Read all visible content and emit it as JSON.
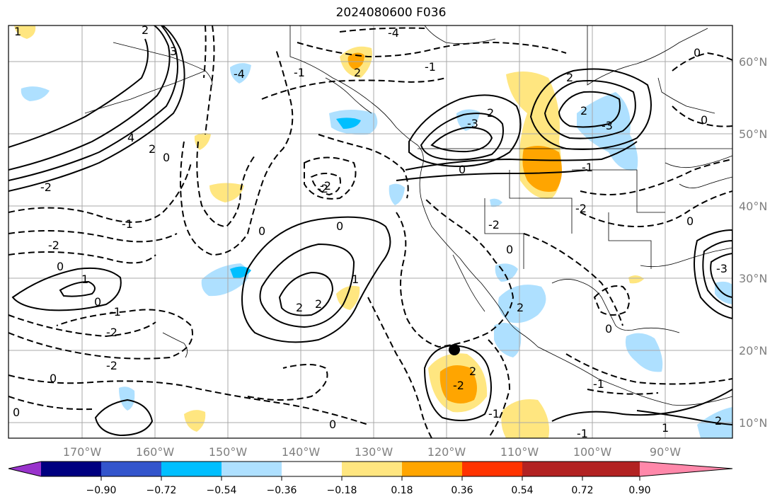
{
  "title": "2024080600 F036",
  "map": {
    "lon_ticks": [
      "170°W",
      "160°W",
      "150°W",
      "140°W",
      "130°W",
      "120°W",
      "110°W",
      "100°W",
      "90°W"
    ],
    "lat_ticks": [
      "60°N",
      "50°N",
      "40°N",
      "30°N",
      "20°N",
      "10°N"
    ],
    "contour_labels": [
      "-4",
      "-2",
      "-2",
      "-2",
      "-2",
      "-2",
      "-2",
      "-2",
      "-1",
      "-1",
      "-1",
      "0",
      "0",
      "0",
      "0",
      "0",
      "0",
      "0",
      "0",
      "0",
      "0",
      "0",
      "1",
      "1",
      "1",
      "2",
      "2",
      "2",
      "2",
      "2",
      "2",
      "2",
      "2",
      "-2",
      "4",
      "-4",
      "-3",
      "-3",
      "3",
      "-2",
      "-1",
      "-1",
      "-3",
      "2",
      "-1",
      "0",
      "0",
      "0",
      "-1",
      "2",
      "-1",
      "1",
      "2"
    ],
    "grid": true
  },
  "colorbar": {
    "labels": [
      "−0.90",
      "−0.72",
      "−0.54",
      "−0.36",
      "−0.18",
      "0.18",
      "0.36",
      "0.54",
      "0.72",
      "0.90"
    ],
    "colors": [
      "#9933cc",
      "#000080",
      "#3355cc",
      "#00bfff",
      "#aee0ff",
      "#ffffff",
      "#ffe680",
      "#ffa500",
      "#ff3300",
      "#b22222",
      "#ff88aa"
    ]
  }
}
